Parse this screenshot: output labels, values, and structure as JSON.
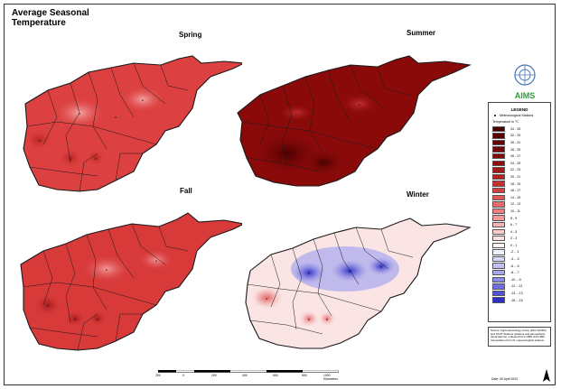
{
  "title": "Average Seasonal\nTemperature",
  "panels": {
    "spring": {
      "label": "Spring"
    },
    "summer": {
      "label": "Summer"
    },
    "fall": {
      "label": "Fall"
    },
    "winter": {
      "label": "Winter"
    }
  },
  "logo": {
    "text": "AIMS"
  },
  "legend": {
    "title": "LEGEND",
    "station_label": "Meteorological Stations",
    "subtitle": "Temperature in °C",
    "classes": [
      {
        "label": "34 - 35",
        "color": "#4a0000"
      },
      {
        "label": "32 - 33",
        "color": "#5a0000"
      },
      {
        "label": "30 - 31",
        "color": "#680404"
      },
      {
        "label": "28 - 29",
        "color": "#760808"
      },
      {
        "label": "26 - 27",
        "color": "#840c0c"
      },
      {
        "label": "24 - 25",
        "color": "#921010"
      },
      {
        "label": "22 - 23",
        "color": "#a41818"
      },
      {
        "label": "20 - 21",
        "color": "#b82020"
      },
      {
        "label": "18 - 19",
        "color": "#c83030"
      },
      {
        "label": "16 - 17",
        "color": "#d84040"
      },
      {
        "label": "14 - 15",
        "color": "#e05454"
      },
      {
        "label": "12 - 13",
        "color": "#e86a6a"
      },
      {
        "label": "10 - 11",
        "color": "#f08080"
      },
      {
        "label": "8 - 9",
        "color": "#f49a9a"
      },
      {
        "label": "6 - 7",
        "color": "#f8b4b4"
      },
      {
        "label": "4 - 5",
        "color": "#fccaca"
      },
      {
        "label": "2 - 3",
        "color": "#fde0e0"
      },
      {
        "label": "0 - 1",
        "color": "#fff2f2"
      },
      {
        "label": "-2 - -1",
        "color": "#eeeeff"
      },
      {
        "label": "-4 - -3",
        "color": "#d8d8fb"
      },
      {
        "label": "-6 - -5",
        "color": "#c0c0f6"
      },
      {
        "label": "-8 - -7",
        "color": "#a6a6f0"
      },
      {
        "label": "-10 - -9",
        "color": "#8a8aea"
      },
      {
        "label": "-12 - -11",
        "color": "#6e6ee2"
      },
      {
        "label": "-14 - -13",
        "color": "#5050d8"
      },
      {
        "label": "-16 - -15",
        "color": "#3030c8"
      }
    ]
  },
  "source_note": "Source: Agrometeorology Group (FAO-SCIPA) and KIUIT Stations (stations and atmospheric observations), collected from 1958 until 1983. Interpolation from 31 meteorological stations.",
  "scale": {
    "labels": [
      "200",
      "0",
      "200",
      "400",
      "600",
      "800",
      "1000 Kilometers"
    ]
  },
  "date": "Date: 30 April 2003",
  "colors": {
    "spring_base": "#dc4040",
    "summer_base": "#8a0a0a",
    "fall_base": "#d83a3a",
    "winter_base": "#fbe4e4",
    "winter_cold": "#6a6ae4"
  }
}
